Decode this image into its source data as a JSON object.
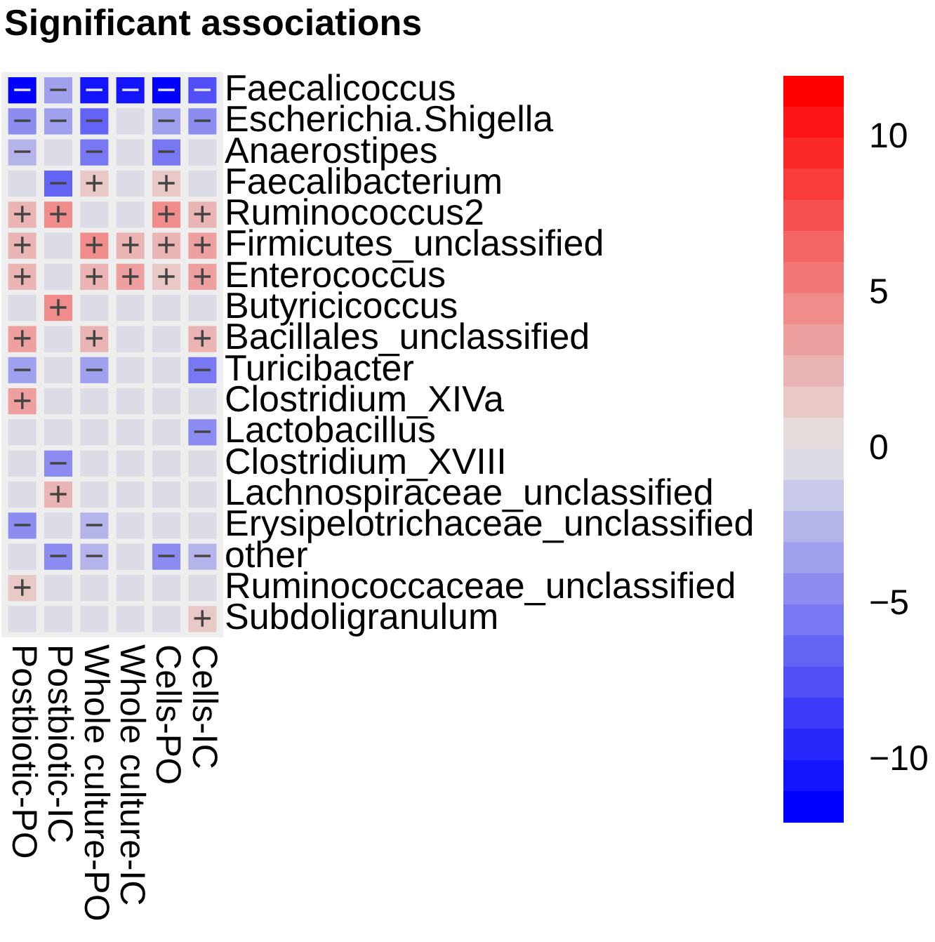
{
  "chart_data": {
    "type": "heatmap",
    "title": "Significant associations",
    "categories": [
      "Postbiotic-PO",
      "Postbiotic-IC",
      "Whole culture-PO",
      "Whole culture-IC",
      "Cells-PO",
      "Cells-IC"
    ],
    "y_categories": [
      "Faecalicoccus",
      "Escherichia.Shigella",
      "Anaerostipes",
      "Faecalibacterium",
      "Ruminococcus2",
      "Firmicutes_unclassified",
      "Enterococcus",
      "Butyricicoccus",
      "Bacillales_unclassified",
      "Turicibacter",
      "Clostridium_XIVa",
      "Lactobacillus",
      "Clostridium_XVIII",
      "Lachnospiraceae_unclassified",
      "Erysipelotrichaceae_unclassified",
      "other",
      "Ruminococcaceae_unclassified",
      "Subdoligranulum"
    ],
    "cells": [
      [
        -12,
        -3,
        -10,
        -10,
        -11,
        -7
      ],
      [
        -4,
        -3,
        -6,
        0,
        -3,
        -4
      ],
      [
        -2,
        0,
        -5,
        0,
        -5,
        0
      ],
      [
        0,
        -6,
        2,
        0,
        2,
        0
      ],
      [
        3,
        5,
        0,
        0,
        5,
        3
      ],
      [
        3,
        0,
        5,
        3,
        3,
        4
      ],
      [
        3,
        0,
        3,
        4,
        2,
        4
      ],
      [
        0,
        5,
        0,
        0,
        0,
        0
      ],
      [
        4,
        0,
        3,
        0,
        0,
        3
      ],
      [
        -3,
        0,
        -3,
        0,
        0,
        -5
      ],
      [
        4,
        0,
        0,
        0,
        0,
        0
      ],
      [
        0,
        0,
        0,
        0,
        0,
        -4
      ],
      [
        0,
        -4,
        0,
        0,
        0,
        0
      ],
      [
        0,
        3,
        0,
        0,
        0,
        0
      ],
      [
        -4,
        0,
        -2,
        0,
        0,
        0
      ],
      [
        0,
        -4,
        -2,
        0,
        -4,
        -2
      ],
      [
        2,
        0,
        0,
        0,
        0,
        0
      ],
      [
        0,
        0,
        0,
        0,
        0,
        2
      ]
    ],
    "cell_labels": [
      [
        "−",
        "−",
        "−",
        "−",
        "−",
        "−"
      ],
      [
        "−",
        "−",
        "−",
        null,
        "−",
        "−"
      ],
      [
        "−",
        null,
        "−",
        null,
        "−",
        null
      ],
      [
        null,
        "−",
        "+",
        null,
        "+",
        null
      ],
      [
        "+",
        "+",
        null,
        null,
        "+",
        "+"
      ],
      [
        "+",
        null,
        "+",
        "+",
        "+",
        "+"
      ],
      [
        "+",
        null,
        "+",
        "+",
        "+",
        "+"
      ],
      [
        null,
        "+",
        null,
        null,
        null,
        null
      ],
      [
        "+",
        null,
        "+",
        null,
        null,
        "+"
      ],
      [
        "−",
        null,
        "−",
        null,
        null,
        "−"
      ],
      [
        "+",
        null,
        null,
        null,
        null,
        null
      ],
      [
        null,
        null,
        null,
        null,
        null,
        "−"
      ],
      [
        null,
        "−",
        null,
        null,
        null,
        null
      ],
      [
        null,
        "+",
        null,
        null,
        null,
        null
      ],
      [
        "−",
        null,
        "−",
        null,
        null,
        null
      ],
      [
        null,
        "−",
        "−",
        null,
        "−",
        "−"
      ],
      [
        "+",
        null,
        null,
        null,
        null,
        null
      ],
      [
        null,
        null,
        null,
        null,
        null,
        "+"
      ]
    ],
    "clim": [
      -12,
      12
    ],
    "cticks": [
      {
        "value": -10,
        "label": "−10"
      },
      {
        "value": -5,
        "label": "−5"
      },
      0,
      5,
      10
    ]
  }
}
